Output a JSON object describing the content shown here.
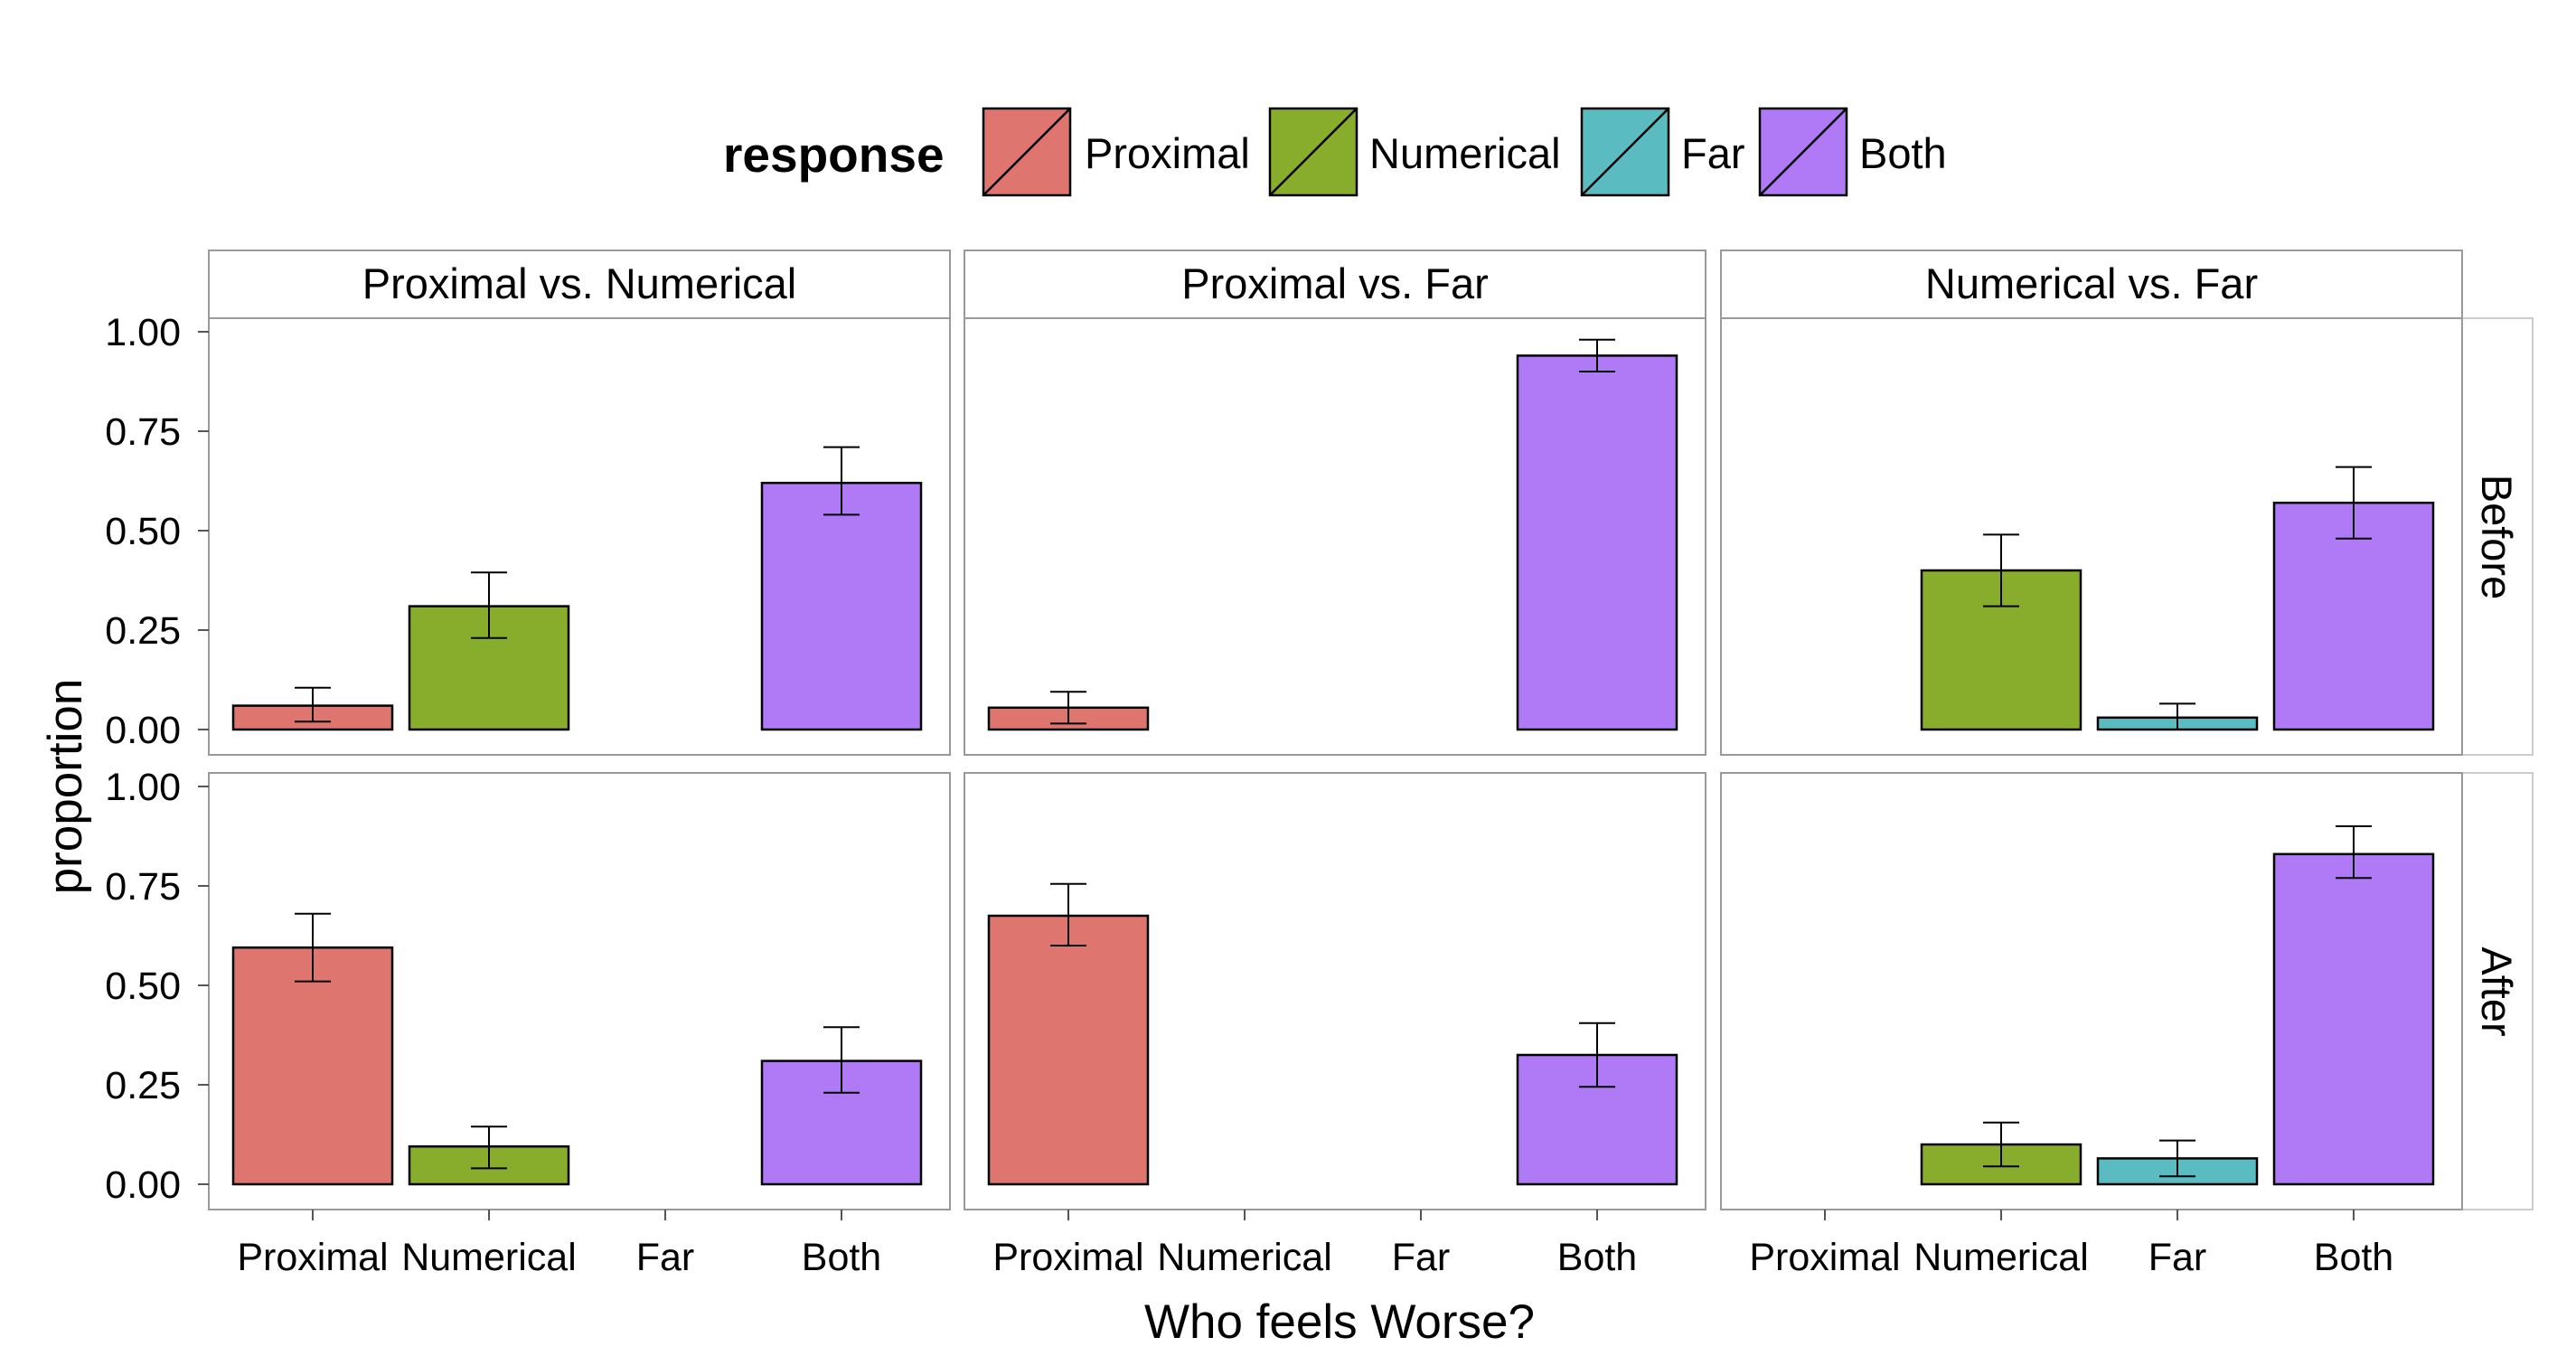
{
  "chart_data": {
    "type": "bar",
    "xlabel": "Who feels Worse?",
    "ylabel": "proportion",
    "ylim": [
      0,
      1
    ],
    "y_ticks": [
      "0.00",
      "0.25",
      "0.50",
      "0.75",
      "1.00"
    ],
    "categories": [
      "Proximal",
      "Numerical",
      "Far",
      "Both"
    ],
    "legend": {
      "title": "response",
      "position": "top",
      "entries": [
        "Proximal",
        "Numerical",
        "Far",
        "Both"
      ]
    },
    "colors": {
      "Proximal": "#DF756F",
      "Numerical": "#88AD2C",
      "Far": "#5ABCC1",
      "Both": "#B07AF7"
    },
    "facet_cols": [
      "Proximal vs. Numerical",
      "Proximal vs. Far",
      "Numerical vs. Far"
    ],
    "facet_rows": [
      "Before",
      "After"
    ],
    "panels": [
      {
        "col": "Proximal vs. Numerical",
        "row": "Before",
        "values": [
          0.06,
          0.31,
          0.0,
          0.62
        ],
        "errors": [
          [
            0.02,
            0.105
          ],
          [
            0.23,
            0.395
          ],
          null,
          [
            0.54,
            0.71
          ]
        ]
      },
      {
        "col": "Proximal vs. Far",
        "row": "Before",
        "values": [
          0.055,
          0.0,
          0.0,
          0.94
        ],
        "errors": [
          [
            0.015,
            0.095
          ],
          null,
          null,
          [
            0.9,
            0.98
          ]
        ]
      },
      {
        "col": "Numerical vs. Far",
        "row": "Before",
        "values": [
          0.0,
          0.4,
          0.03,
          0.57
        ],
        "errors": [
          null,
          [
            0.31,
            0.49
          ],
          [
            0.0,
            0.065
          ],
          [
            0.48,
            0.66
          ]
        ]
      },
      {
        "col": "Proximal vs. Numerical",
        "row": "After",
        "values": [
          0.595,
          0.095,
          0.0,
          0.31
        ],
        "errors": [
          [
            0.51,
            0.68
          ],
          [
            0.04,
            0.145
          ],
          null,
          [
            0.23,
            0.395
          ]
        ]
      },
      {
        "col": "Proximal vs. Far",
        "row": "After",
        "values": [
          0.675,
          0.0,
          0.0,
          0.325
        ],
        "errors": [
          [
            0.6,
            0.755
          ],
          null,
          null,
          [
            0.245,
            0.405
          ]
        ]
      },
      {
        "col": "Numerical vs. Far",
        "row": "After",
        "values": [
          0.0,
          0.1,
          0.065,
          0.83
        ],
        "errors": [
          null,
          [
            0.045,
            0.155
          ],
          [
            0.02,
            0.11
          ],
          [
            0.77,
            0.9
          ]
        ]
      }
    ]
  }
}
